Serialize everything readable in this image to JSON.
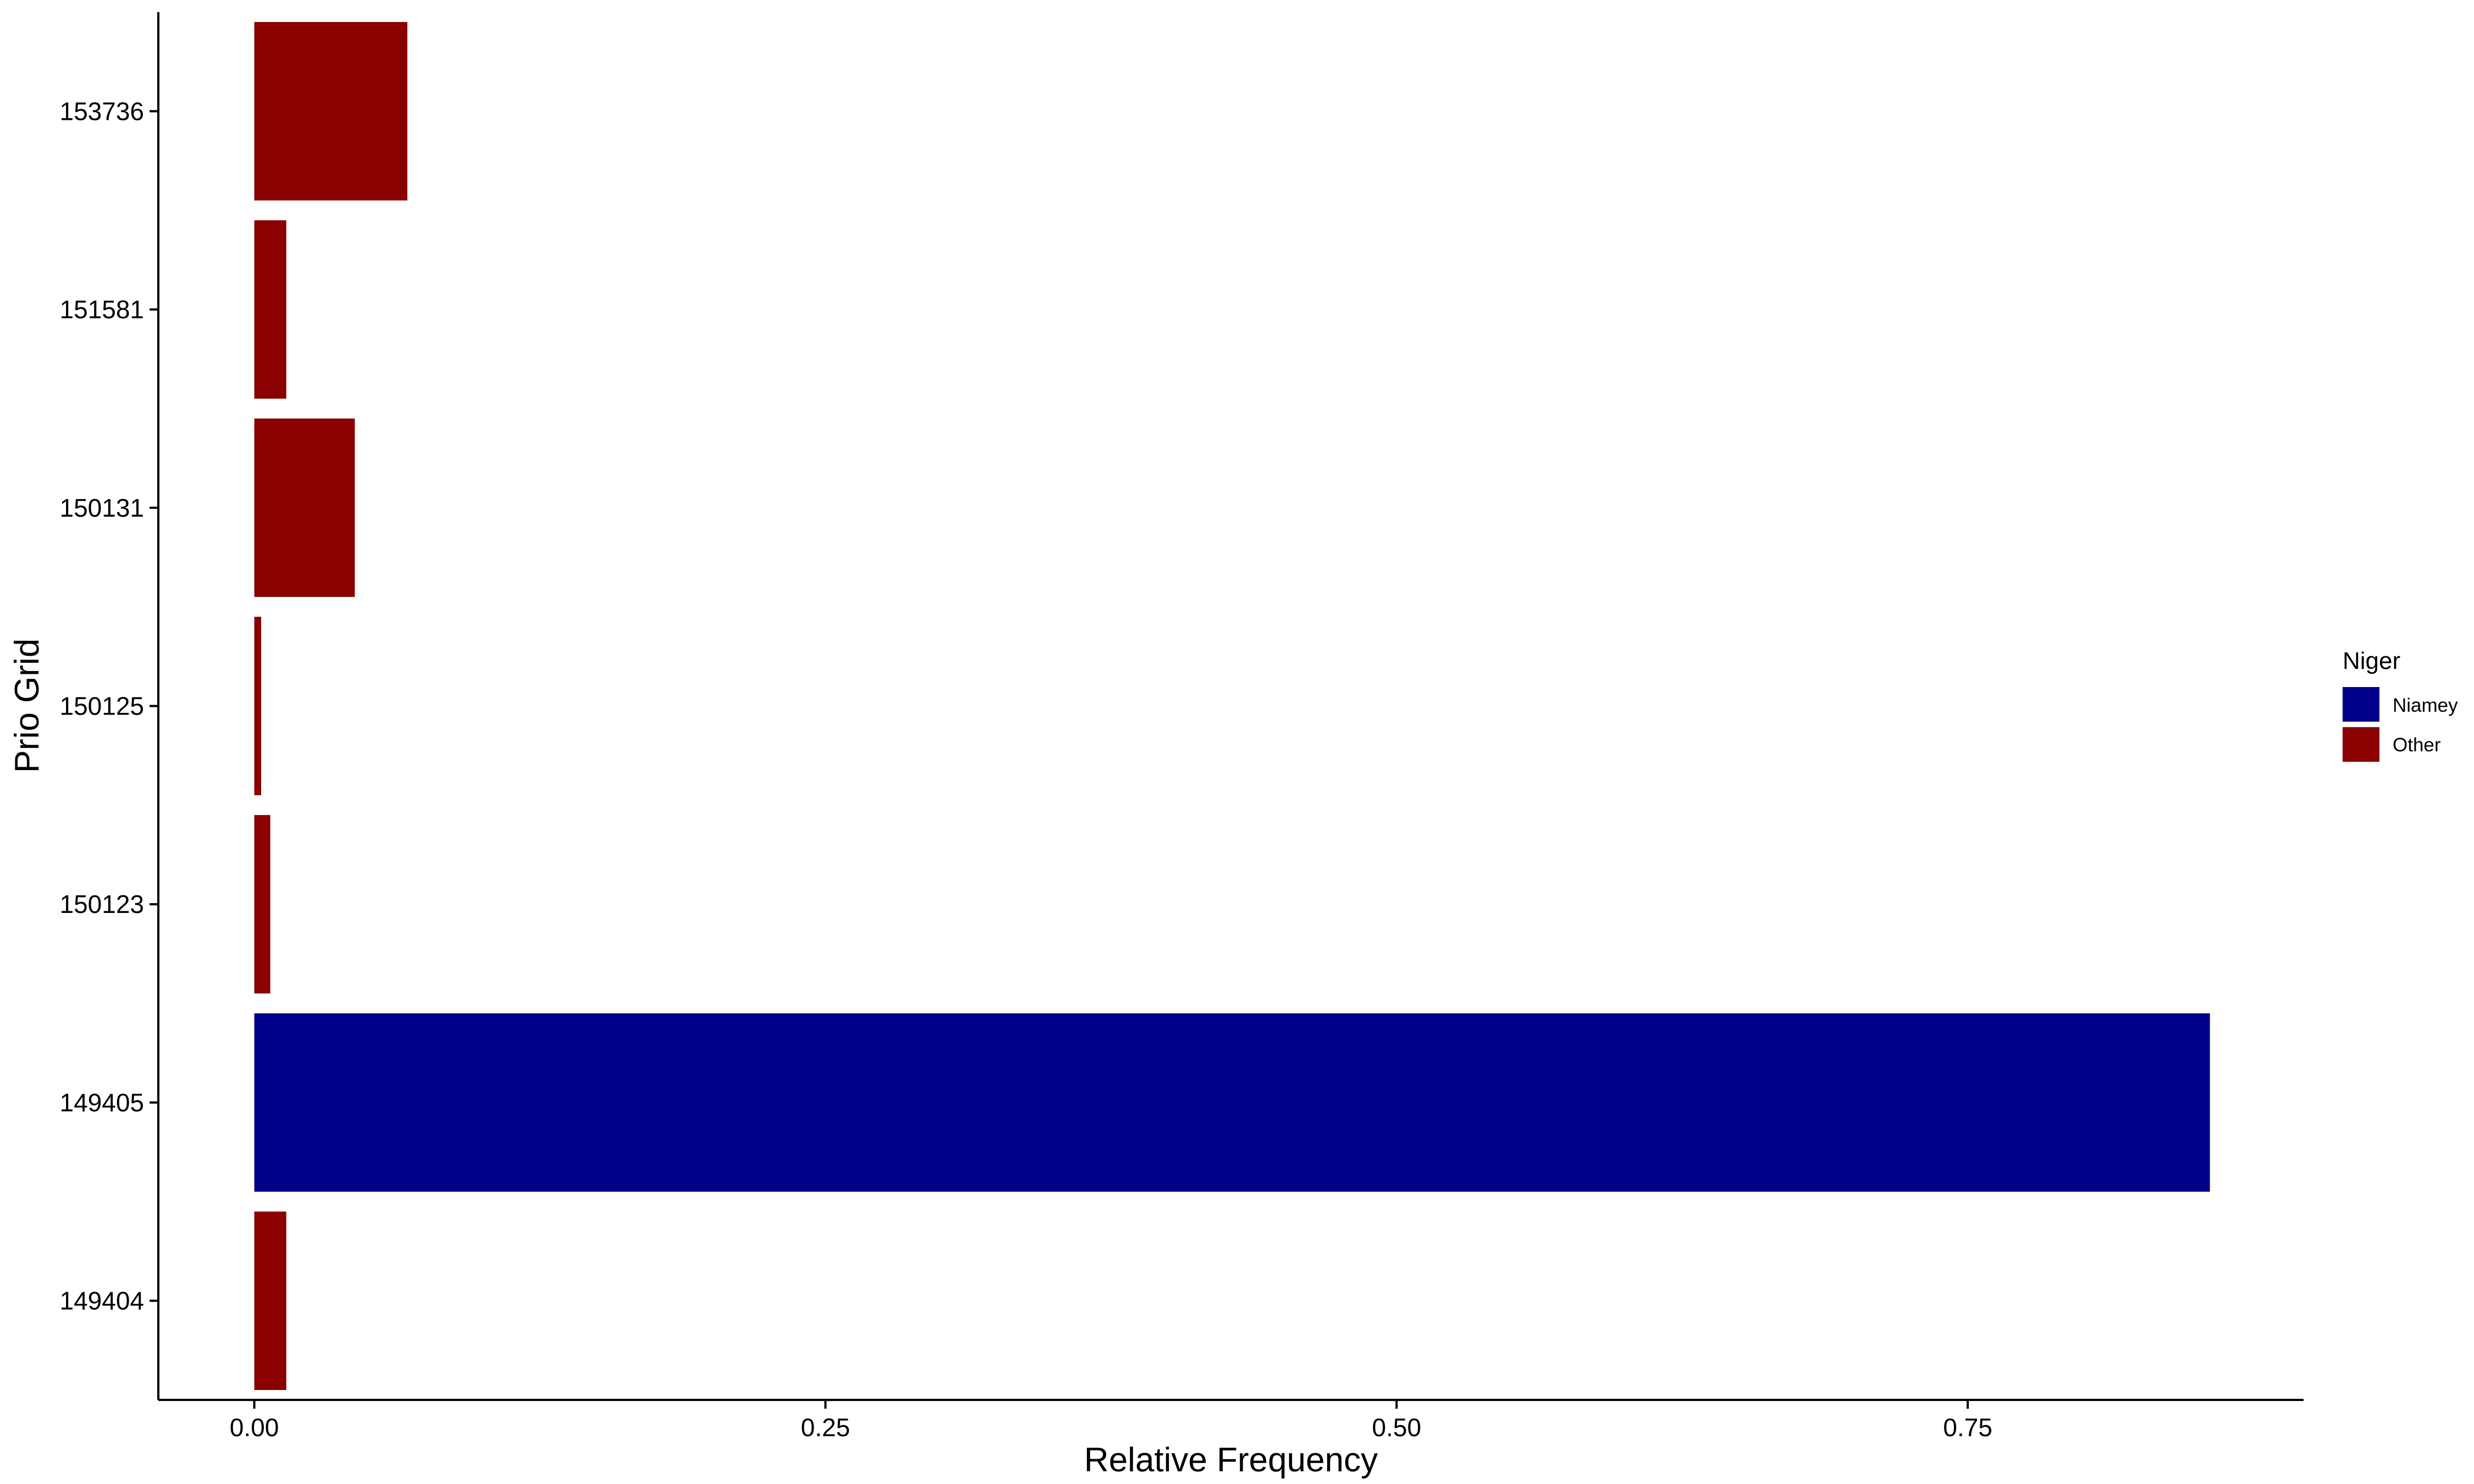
{
  "chart_data": {
    "type": "bar",
    "orientation": "horizontal",
    "xlabel": "Relative Frequency",
    "ylabel": "Prio Grid",
    "xlim": [
      -0.042,
      0.897
    ],
    "x_ticks": [
      0.0,
      0.25,
      0.5,
      0.75
    ],
    "x_tick_labels": [
      "0.00",
      "0.25",
      "0.50",
      "0.75"
    ],
    "categories": [
      "153736",
      "151581",
      "150131",
      "150125",
      "150123",
      "149405",
      "149404"
    ],
    "values": [
      0.067,
      0.014,
      0.044,
      0.003,
      0.007,
      0.856,
      0.014
    ],
    "groups": [
      "Other",
      "Other",
      "Other",
      "Other",
      "Other",
      "Niamey",
      "Other"
    ],
    "grid": false,
    "legend": {
      "title": "Niger",
      "position": "right",
      "entries": [
        {
          "label": "Niamey",
          "color": "#00008B"
        },
        {
          "label": "Other",
          "color": "#8B0000"
        }
      ]
    }
  }
}
